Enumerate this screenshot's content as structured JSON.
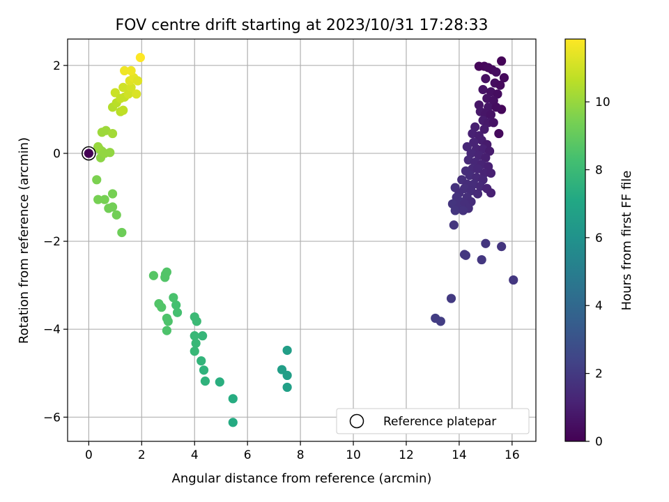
{
  "chart_data": {
    "type": "scatter",
    "title": "FOV centre drift starting at 2023/10/31 17:28:33",
    "xlabel": "Angular distance from reference (arcmin)",
    "ylabel": "Rotation from reference (arcmin)",
    "xlim": [
      -0.8,
      16.9
    ],
    "ylim": [
      -6.55,
      2.6
    ],
    "x_ticks": [
      0,
      2,
      4,
      6,
      8,
      10,
      12,
      14,
      16
    ],
    "y_ticks": [
      -6,
      -4,
      -2,
      0,
      2
    ],
    "grid": true,
    "legend": {
      "entries": [
        "Reference platepar"
      ],
      "placement": "lower-right"
    },
    "reference_point": {
      "x": 0,
      "y": 0,
      "label": "Reference platepar"
    },
    "colorbar": {
      "label": "Hours from first FF file",
      "range": [
        0,
        11.85
      ],
      "ticks": [
        0,
        2,
        4,
        6,
        8,
        10
      ],
      "colormap": "viridis"
    },
    "points": [
      {
        "x": 0.0,
        "y": 0.0,
        "t": 0.0
      },
      {
        "x": 14.75,
        "y": 1.98,
        "t": 0.2
      },
      {
        "x": 14.95,
        "y": 1.98,
        "t": 0.2
      },
      {
        "x": 15.1,
        "y": 1.95,
        "t": 0.3
      },
      {
        "x": 15.25,
        "y": 1.9,
        "t": 0.3
      },
      {
        "x": 15.6,
        "y": 2.1,
        "t": 0.1
      },
      {
        "x": 15.4,
        "y": 1.85,
        "t": 0.4
      },
      {
        "x": 15.7,
        "y": 1.72,
        "t": 0.3
      },
      {
        "x": 15.0,
        "y": 1.7,
        "t": 0.5
      },
      {
        "x": 15.35,
        "y": 1.6,
        "t": 0.4
      },
      {
        "x": 15.55,
        "y": 1.55,
        "t": 0.3
      },
      {
        "x": 14.9,
        "y": 1.45,
        "t": 0.6
      },
      {
        "x": 15.2,
        "y": 1.4,
        "t": 0.5
      },
      {
        "x": 15.45,
        "y": 1.35,
        "t": 0.4
      },
      {
        "x": 15.05,
        "y": 1.25,
        "t": 0.6
      },
      {
        "x": 15.3,
        "y": 1.2,
        "t": 0.5
      },
      {
        "x": 14.75,
        "y": 1.1,
        "t": 0.7
      },
      {
        "x": 15.1,
        "y": 1.05,
        "t": 0.7
      },
      {
        "x": 15.6,
        "y": 1.0,
        "t": 0.2
      },
      {
        "x": 15.4,
        "y": 1.05,
        "t": 0.4
      },
      {
        "x": 14.8,
        "y": 0.95,
        "t": 0.8
      },
      {
        "x": 15.0,
        "y": 0.9,
        "t": 0.7
      },
      {
        "x": 15.2,
        "y": 0.88,
        "t": 0.6
      },
      {
        "x": 14.9,
        "y": 0.75,
        "t": 0.9
      },
      {
        "x": 15.1,
        "y": 0.7,
        "t": 0.8
      },
      {
        "x": 15.3,
        "y": 0.7,
        "t": 0.6
      },
      {
        "x": 14.6,
        "y": 0.6,
        "t": 1.0
      },
      {
        "x": 14.95,
        "y": 0.55,
        "t": 0.9
      },
      {
        "x": 14.5,
        "y": 0.45,
        "t": 1.1
      },
      {
        "x": 15.5,
        "y": 0.45,
        "t": 0.3
      },
      {
        "x": 14.75,
        "y": 0.4,
        "t": 1.0
      },
      {
        "x": 14.85,
        "y": 0.3,
        "t": 1.0
      },
      {
        "x": 14.55,
        "y": 0.25,
        "t": 1.2
      },
      {
        "x": 14.3,
        "y": 0.15,
        "t": 1.3
      },
      {
        "x": 15.05,
        "y": 0.2,
        "t": 0.9
      },
      {
        "x": 14.65,
        "y": 0.1,
        "t": 1.2
      },
      {
        "x": 14.9,
        "y": 0.1,
        "t": 1.1
      },
      {
        "x": 15.15,
        "y": 0.05,
        "t": 0.9
      },
      {
        "x": 14.45,
        "y": 0.0,
        "t": 1.3
      },
      {
        "x": 14.75,
        "y": -0.05,
        "t": 1.2
      },
      {
        "x": 15.0,
        "y": -0.1,
        "t": 1.0
      },
      {
        "x": 14.35,
        "y": -0.15,
        "t": 1.4
      },
      {
        "x": 14.6,
        "y": -0.2,
        "t": 1.3
      },
      {
        "x": 14.85,
        "y": -0.25,
        "t": 1.2
      },
      {
        "x": 15.1,
        "y": -0.3,
        "t": 1.1
      },
      {
        "x": 14.5,
        "y": -0.35,
        "t": 1.4
      },
      {
        "x": 14.7,
        "y": -0.35,
        "t": 1.3
      },
      {
        "x": 14.25,
        "y": -0.4,
        "t": 1.5
      },
      {
        "x": 14.95,
        "y": -0.45,
        "t": 1.2
      },
      {
        "x": 15.2,
        "y": -0.45,
        "t": 1.1
      },
      {
        "x": 14.4,
        "y": -0.5,
        "t": 1.5
      },
      {
        "x": 14.65,
        "y": -0.55,
        "t": 1.4
      },
      {
        "x": 14.1,
        "y": -0.6,
        "t": 1.6
      },
      {
        "x": 14.9,
        "y": -0.6,
        "t": 1.3
      },
      {
        "x": 14.3,
        "y": -0.7,
        "t": 1.5
      },
      {
        "x": 14.55,
        "y": -0.7,
        "t": 1.5
      },
      {
        "x": 14.8,
        "y": -0.75,
        "t": 1.4
      },
      {
        "x": 13.85,
        "y": -0.78,
        "t": 1.7
      },
      {
        "x": 14.2,
        "y": -0.8,
        "t": 1.6
      },
      {
        "x": 15.05,
        "y": -0.8,
        "t": 1.2
      },
      {
        "x": 14.45,
        "y": -0.85,
        "t": 1.5
      },
      {
        "x": 14.0,
        "y": -0.9,
        "t": 1.6
      },
      {
        "x": 15.2,
        "y": -0.9,
        "t": 1.1
      },
      {
        "x": 14.7,
        "y": -0.92,
        "t": 1.4
      },
      {
        "x": 13.9,
        "y": -1.0,
        "t": 1.7
      },
      {
        "x": 14.3,
        "y": -1.0,
        "t": 1.6
      },
      {
        "x": 14.05,
        "y": -1.1,
        "t": 1.7
      },
      {
        "x": 14.45,
        "y": -1.1,
        "t": 1.5
      },
      {
        "x": 13.75,
        "y": -1.15,
        "t": 1.8
      },
      {
        "x": 14.2,
        "y": -1.15,
        "t": 1.6
      },
      {
        "x": 13.95,
        "y": -1.25,
        "t": 1.7
      },
      {
        "x": 14.35,
        "y": -1.25,
        "t": 1.6
      },
      {
        "x": 13.85,
        "y": -1.3,
        "t": 1.8
      },
      {
        "x": 14.15,
        "y": -1.3,
        "t": 1.7
      },
      {
        "x": 13.8,
        "y": -1.63,
        "t": 1.8
      },
      {
        "x": 14.2,
        "y": -2.3,
        "t": 1.9
      },
      {
        "x": 14.25,
        "y": -2.32,
        "t": 1.9
      },
      {
        "x": 15.0,
        "y": -2.05,
        "t": 1.8
      },
      {
        "x": 14.85,
        "y": -2.42,
        "t": 1.9
      },
      {
        "x": 15.6,
        "y": -2.12,
        "t": 1.8
      },
      {
        "x": 16.05,
        "y": -2.88,
        "t": 1.9
      },
      {
        "x": 13.7,
        "y": -3.3,
        "t": 2.0
      },
      {
        "x": 13.1,
        "y": -3.75,
        "t": 2.1
      },
      {
        "x": 13.3,
        "y": -3.82,
        "t": 2.1
      },
      {
        "x": 7.5,
        "y": -4.48,
        "t": 6.6
      },
      {
        "x": 7.3,
        "y": -4.92,
        "t": 6.6
      },
      {
        "x": 7.5,
        "y": -5.05,
        "t": 6.6
      },
      {
        "x": 7.5,
        "y": -5.32,
        "t": 6.7
      },
      {
        "x": 5.45,
        "y": -5.58,
        "t": 7.3
      },
      {
        "x": 5.45,
        "y": -6.12,
        "t": 7.2
      },
      {
        "x": 4.95,
        "y": -5.2,
        "t": 7.4
      },
      {
        "x": 4.4,
        "y": -5.18,
        "t": 7.6
      },
      {
        "x": 4.35,
        "y": -4.93,
        "t": 7.6
      },
      {
        "x": 4.25,
        "y": -4.72,
        "t": 7.7
      },
      {
        "x": 4.3,
        "y": -4.15,
        "t": 7.8
      },
      {
        "x": 4.0,
        "y": -4.15,
        "t": 7.9
      },
      {
        "x": 4.05,
        "y": -4.32,
        "t": 7.9
      },
      {
        "x": 4.0,
        "y": -4.5,
        "t": 7.9
      },
      {
        "x": 4.0,
        "y": -3.72,
        "t": 8.0
      },
      {
        "x": 4.08,
        "y": -3.82,
        "t": 8.0
      },
      {
        "x": 3.3,
        "y": -3.45,
        "t": 8.3
      },
      {
        "x": 3.35,
        "y": -3.62,
        "t": 8.3
      },
      {
        "x": 3.2,
        "y": -3.28,
        "t": 8.4
      },
      {
        "x": 2.95,
        "y": -3.75,
        "t": 8.5
      },
      {
        "x": 3.0,
        "y": -3.82,
        "t": 8.5
      },
      {
        "x": 2.95,
        "y": -4.03,
        "t": 8.5
      },
      {
        "x": 2.65,
        "y": -3.42,
        "t": 8.6
      },
      {
        "x": 2.75,
        "y": -3.5,
        "t": 8.6
      },
      {
        "x": 2.45,
        "y": -2.78,
        "t": 8.7
      },
      {
        "x": 2.9,
        "y": -2.75,
        "t": 8.6
      },
      {
        "x": 2.95,
        "y": -2.7,
        "t": 8.6
      },
      {
        "x": 2.88,
        "y": -2.82,
        "t": 8.6
      },
      {
        "x": 1.25,
        "y": -1.8,
        "t": 9.2
      },
      {
        "x": 1.05,
        "y": -1.4,
        "t": 9.3
      },
      {
        "x": 0.75,
        "y": -1.25,
        "t": 9.3
      },
      {
        "x": 0.9,
        "y": -1.22,
        "t": 9.3
      },
      {
        "x": 0.35,
        "y": -1.05,
        "t": 9.4
      },
      {
        "x": 0.6,
        "y": -1.05,
        "t": 9.4
      },
      {
        "x": 0.9,
        "y": -0.92,
        "t": 9.4
      },
      {
        "x": 0.3,
        "y": -0.6,
        "t": 9.5
      },
      {
        "x": 0.45,
        "y": -0.1,
        "t": 9.8
      },
      {
        "x": 0.4,
        "y": 0.1,
        "t": 9.9
      },
      {
        "x": 0.5,
        "y": 0.05,
        "t": 9.9
      },
      {
        "x": 0.6,
        "y": 0.0,
        "t": 9.9
      },
      {
        "x": 0.8,
        "y": 0.02,
        "t": 9.9
      },
      {
        "x": 0.35,
        "y": 0.15,
        "t": 10.0
      },
      {
        "x": 0.5,
        "y": 0.48,
        "t": 10.1
      },
      {
        "x": 0.65,
        "y": 0.52,
        "t": 10.1
      },
      {
        "x": 0.9,
        "y": 0.45,
        "t": 10.2
      },
      {
        "x": 0.9,
        "y": 1.05,
        "t": 10.5
      },
      {
        "x": 1.05,
        "y": 1.15,
        "t": 10.6
      },
      {
        "x": 1.2,
        "y": 0.95,
        "t": 10.6
      },
      {
        "x": 1.3,
        "y": 0.98,
        "t": 10.7
      },
      {
        "x": 1.0,
        "y": 1.38,
        "t": 10.9
      },
      {
        "x": 1.2,
        "y": 1.25,
        "t": 10.8
      },
      {
        "x": 1.35,
        "y": 1.28,
        "t": 10.8
      },
      {
        "x": 1.5,
        "y": 1.35,
        "t": 11.0
      },
      {
        "x": 1.3,
        "y": 1.5,
        "t": 11.0
      },
      {
        "x": 1.6,
        "y": 1.5,
        "t": 11.1
      },
      {
        "x": 1.8,
        "y": 1.35,
        "t": 11.2
      },
      {
        "x": 1.55,
        "y": 1.65,
        "t": 11.3
      },
      {
        "x": 1.7,
        "y": 1.72,
        "t": 11.4
      },
      {
        "x": 1.85,
        "y": 1.65,
        "t": 11.3
      },
      {
        "x": 1.35,
        "y": 1.88,
        "t": 11.6
      },
      {
        "x": 1.6,
        "y": 1.88,
        "t": 11.6
      },
      {
        "x": 1.95,
        "y": 2.18,
        "t": 11.85
      }
    ]
  }
}
